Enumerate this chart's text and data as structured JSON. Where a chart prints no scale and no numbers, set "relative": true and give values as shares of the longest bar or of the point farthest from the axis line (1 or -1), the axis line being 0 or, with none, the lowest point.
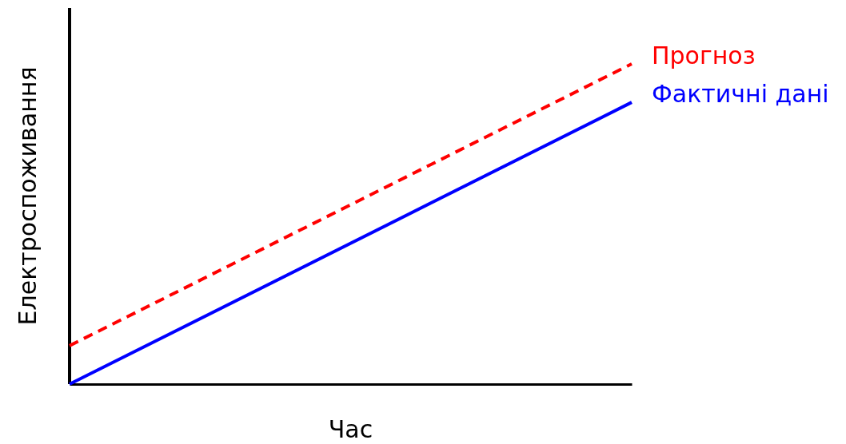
{
  "chart_data": {
    "type": "line",
    "relative": true,
    "xlabel": "Час",
    "ylabel": "Електроспоживання",
    "categories": [
      null,
      null
    ],
    "series": [
      {
        "name": "Прогноз",
        "color": "#ff0000",
        "values": [
          0.12,
          1
        ],
        "line_style": "dashed"
      },
      {
        "name": "Фактичні дані",
        "color": "#0000ff",
        "values": [
          0,
          0.88
        ],
        "line_style": "solid"
      }
    ]
  }
}
